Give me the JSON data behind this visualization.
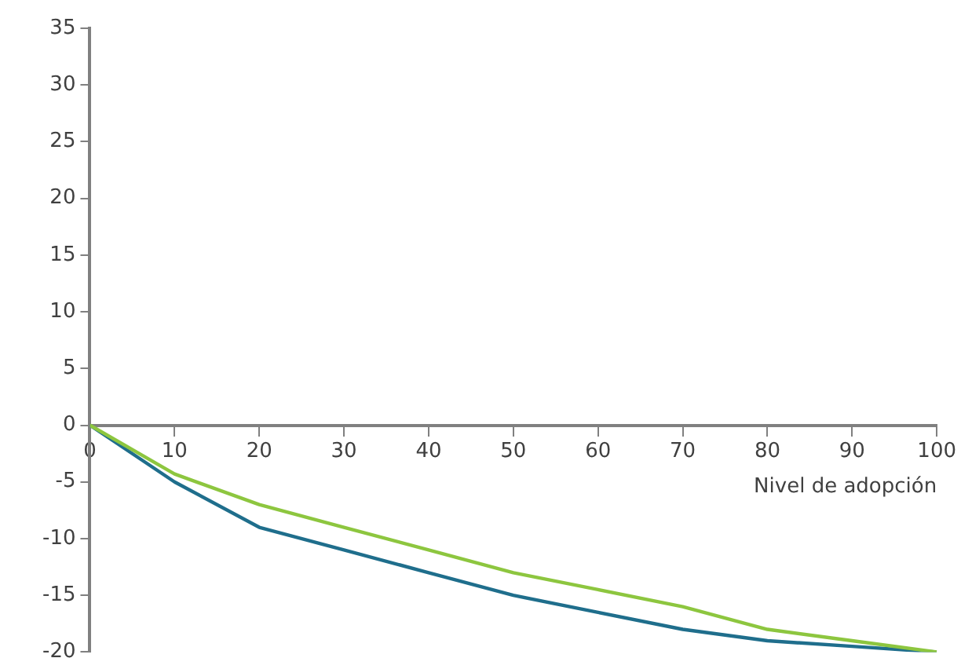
{
  "chart_data": {
    "type": "line",
    "xlabel": "Nivel de adopción",
    "x": [
      0,
      10,
      20,
      30,
      40,
      50,
      60,
      70,
      80,
      90,
      100
    ],
    "series": [
      {
        "color": "#8dc63f",
        "values": [
          0,
          -4.3,
          -7,
          -9,
          -11,
          -13,
          -14.5,
          -16,
          -18,
          -19,
          -20
        ]
      },
      {
        "color": "#1f6e8c",
        "values": [
          0,
          -5,
          -9,
          -11,
          -13,
          -15,
          -16.5,
          -18,
          -19,
          -19.5,
          -20
        ]
      }
    ],
    "xlim": [
      0,
      100
    ],
    "xticks": [
      0,
      10,
      20,
      30,
      40,
      50,
      60,
      70,
      80,
      90,
      100
    ],
    "ylim": [
      -20,
      35
    ],
    "yticks": [
      -20,
      -15,
      -10,
      -5,
      0,
      5,
      10,
      15,
      20,
      25,
      30,
      35
    ],
    "grid": false,
    "legend": false,
    "marker": "none",
    "line_style": "solid"
  }
}
